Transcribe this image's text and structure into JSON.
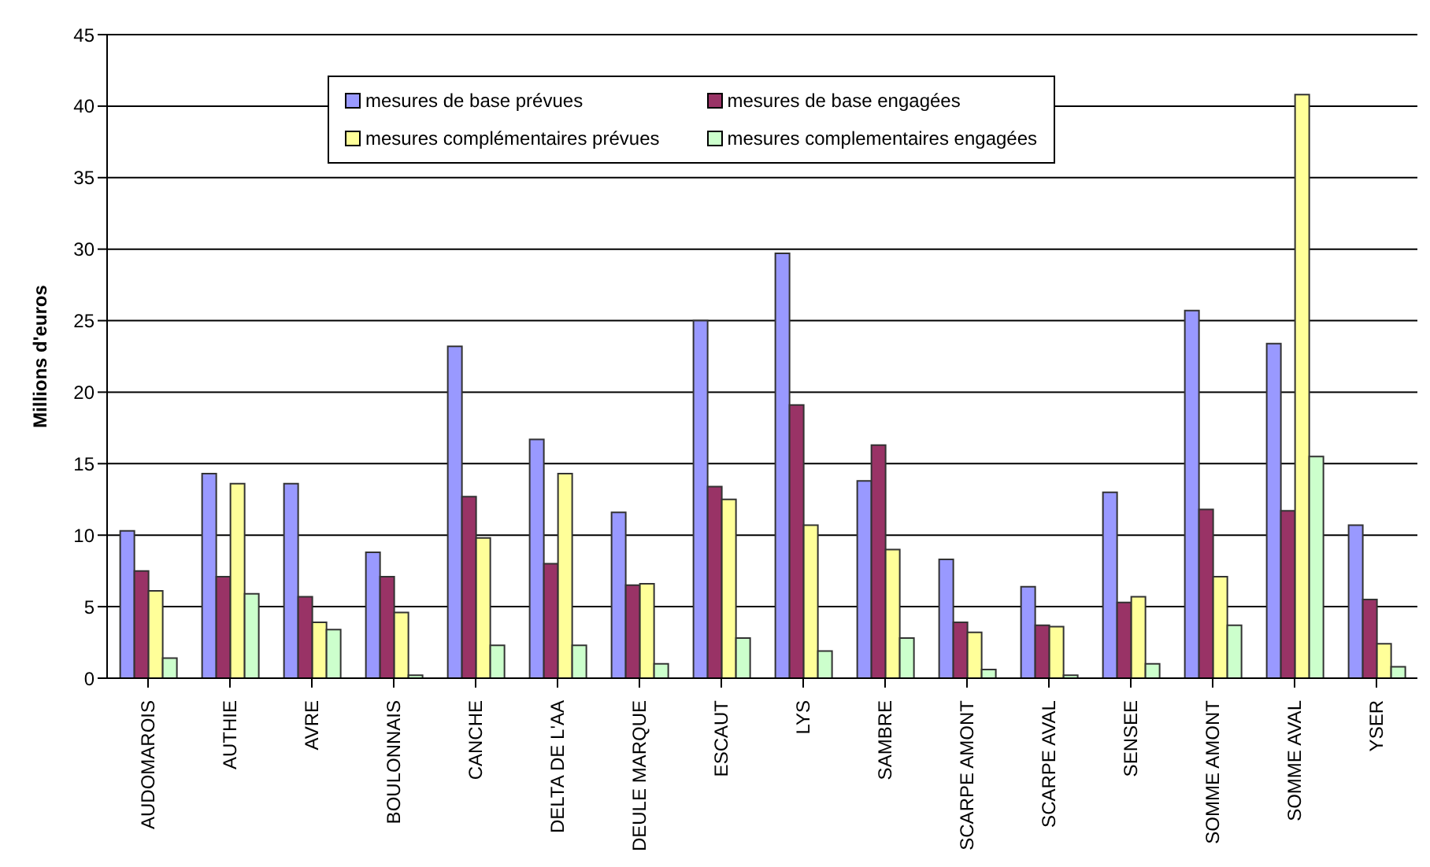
{
  "chart_data": {
    "type": "bar",
    "ylabel": "Millions d'euros",
    "categories": [
      "AUDOMAROIS",
      "AUTHIE",
      "AVRE",
      "BOULONNAIS",
      "CANCHE",
      "DELTA DE L'AA",
      "DEULE MARQUE",
      "ESCAUT",
      "LYS",
      "SAMBRE",
      "SCARPE AMONT",
      "SCARPE AVAL",
      "SENSEE",
      "SOMME AMONT",
      "SOMME AVAL",
      "YSER"
    ],
    "series": [
      {
        "name": "mesures de base prévues",
        "color": "#9999ff",
        "values": [
          10.3,
          14.3,
          13.6,
          8.8,
          23.2,
          16.7,
          11.6,
          25.0,
          29.7,
          13.8,
          8.3,
          6.4,
          13.0,
          25.7,
          23.4,
          10.7
        ]
      },
      {
        "name": "mesures de base engagées",
        "color": "#993366",
        "values": [
          7.5,
          7.1,
          5.7,
          7.1,
          12.7,
          8.0,
          6.5,
          13.4,
          19.1,
          16.3,
          3.9,
          3.7,
          5.3,
          11.8,
          11.7,
          5.5
        ]
      },
      {
        "name": "mesures complémentaires prévues",
        "color": "#ffff99",
        "values": [
          6.1,
          13.6,
          3.9,
          4.6,
          9.8,
          14.3,
          6.6,
          12.5,
          10.7,
          9.0,
          3.2,
          3.6,
          5.7,
          7.1,
          40.8,
          2.4
        ]
      },
      {
        "name": "mesures complementaires engagées",
        "color": "#ccffcc",
        "values": [
          1.4,
          5.9,
          3.4,
          0.2,
          2.3,
          2.3,
          1.0,
          2.8,
          1.9,
          2.8,
          0.6,
          0.2,
          1.0,
          3.7,
          15.5,
          0.8
        ]
      }
    ],
    "ylim": [
      0,
      45
    ],
    "yticks": [
      0,
      5,
      10,
      15,
      20,
      25,
      30,
      35,
      40,
      45
    ],
    "grid": "y",
    "legend": "top"
  }
}
